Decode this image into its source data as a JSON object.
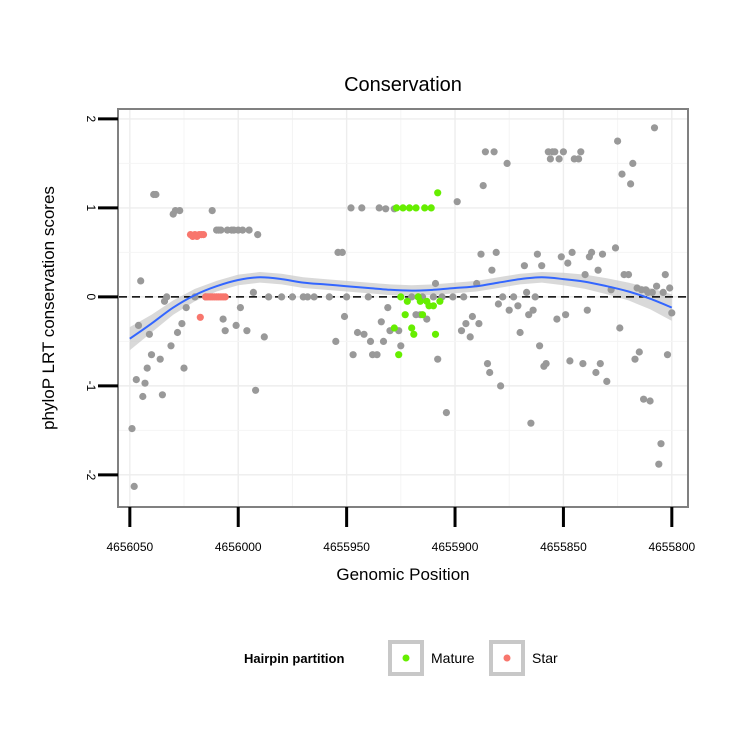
{
  "chart_data": {
    "type": "scatter",
    "title": "Conservation",
    "xlabel": "Genomic Position",
    "ylabel": "phyloP LRT conservation scores",
    "x_reversed": true,
    "xlim": [
      4656055,
      4655793
    ],
    "ylim": [
      -2.35,
      2.1
    ],
    "x_ticks": [
      4656050,
      4656000,
      4655950,
      4655900,
      4655850,
      4655800
    ],
    "x_tick_labels": [
      "4656050",
      "4656000",
      "4655950",
      "4655900",
      "4655850",
      "4655800"
    ],
    "y_ticks": [
      -2,
      -1,
      0,
      1,
      2
    ],
    "y_tick_labels": [
      "-2",
      "-1",
      "0",
      "1",
      "2"
    ],
    "grid": true,
    "reference_line": {
      "y": 0,
      "style": "dashed"
    },
    "legend": {
      "title": "Hairpin partition",
      "position": "bottom",
      "entries": [
        {
          "label": "Mature",
          "color": "#66ee00"
        },
        {
          "label": "Star",
          "color": "#f8766d"
        }
      ]
    },
    "colors": {
      "other": "#999999",
      "mature": "#66ee00",
      "star": "#f8766d",
      "smooth": "#3366ff",
      "band": "#cccccc"
    },
    "smooth": {
      "x": [
        4656050,
        4656040,
        4656030,
        4656020,
        4656010,
        4656000,
        4655990,
        4655980,
        4655970,
        4655960,
        4655950,
        4655940,
        4655930,
        4655920,
        4655910,
        4655900,
        4655890,
        4655880,
        4655870,
        4655860,
        4655850,
        4655840,
        4655830,
        4655820,
        4655810,
        4655800
      ],
      "y": [
        -0.47,
        -0.3,
        -0.12,
        0.02,
        0.12,
        0.19,
        0.22,
        0.2,
        0.16,
        0.14,
        0.12,
        0.1,
        0.08,
        0.07,
        0.08,
        0.1,
        0.12,
        0.16,
        0.2,
        0.22,
        0.2,
        0.17,
        0.12,
        0.06,
        -0.02,
        -0.12
      ],
      "band_lo": [
        -0.6,
        -0.4,
        -0.2,
        -0.05,
        0.06,
        0.13,
        0.16,
        0.14,
        0.1,
        0.08,
        0.06,
        0.04,
        0.02,
        0.01,
        0.02,
        0.04,
        0.06,
        0.1,
        0.14,
        0.16,
        0.13,
        0.09,
        0.03,
        -0.04,
        -0.14,
        -0.27
      ],
      "band_hi": [
        -0.34,
        -0.2,
        -0.04,
        0.09,
        0.18,
        0.25,
        0.28,
        0.26,
        0.22,
        0.2,
        0.18,
        0.16,
        0.14,
        0.13,
        0.14,
        0.16,
        0.18,
        0.22,
        0.26,
        0.28,
        0.27,
        0.25,
        0.21,
        0.16,
        0.1,
        0.03
      ]
    },
    "points_other": [
      [
        4656049,
        -1.48
      ],
      [
        4656048,
        -2.13
      ],
      [
        4656047,
        -0.93
      ],
      [
        4656046,
        -0.32
      ],
      [
        4656045,
        0.18
      ],
      [
        4656044,
        -1.12
      ],
      [
        4656043,
        -0.97
      ],
      [
        4656042,
        -0.8
      ],
      [
        4656041,
        -0.42
      ],
      [
        4656040,
        -0.65
      ],
      [
        4656039,
        1.15
      ],
      [
        4656038,
        1.15
      ],
      [
        4656036,
        -0.7
      ],
      [
        4656035,
        -1.1
      ],
      [
        4656034,
        -0.05
      ],
      [
        4656033,
        0.0
      ],
      [
        4656031,
        -0.55
      ],
      [
        4656030,
        0.93
      ],
      [
        4656029,
        0.97
      ],
      [
        4656028,
        -0.4
      ],
      [
        4656027,
        0.97
      ],
      [
        4656026,
        -0.3
      ],
      [
        4656025,
        -0.8
      ],
      [
        4656024,
        -0.12
      ],
      [
        4656020,
        0.0
      ],
      [
        4656015,
        0.0
      ],
      [
        4656012,
        0.97
      ],
      [
        4656010,
        0.75
      ],
      [
        4656009,
        0.75
      ],
      [
        4656008,
        0.75
      ],
      [
        4656007,
        -0.25
      ],
      [
        4656006,
        -0.38
      ],
      [
        4656005,
        0.75
      ],
      [
        4656003,
        0.75
      ],
      [
        4656002,
        0.75
      ],
      [
        4656001,
        -0.32
      ],
      [
        4656000,
        0.75
      ],
      [
        4655999,
        -0.12
      ],
      [
        4655998,
        0.75
      ],
      [
        4655996,
        -0.38
      ],
      [
        4655995,
        0.75
      ],
      [
        4655993,
        0.05
      ],
      [
        4655992,
        -1.05
      ],
      [
        4655991,
        0.7
      ],
      [
        4655988,
        -0.45
      ],
      [
        4655986,
        0.0
      ],
      [
        4655980,
        0.0
      ],
      [
        4655975,
        0.0
      ],
      [
        4655970,
        0.0
      ],
      [
        4655968,
        0.0
      ],
      [
        4655965,
        0.0
      ],
      [
        4655958,
        0.0
      ],
      [
        4655955,
        -0.5
      ],
      [
        4655954,
        0.5
      ],
      [
        4655952,
        0.5
      ],
      [
        4655951,
        -0.22
      ],
      [
        4655950,
        0.0
      ],
      [
        4655948,
        1.0
      ],
      [
        4655947,
        -0.65
      ],
      [
        4655945,
        -0.4
      ],
      [
        4655943,
        1.0
      ],
      [
        4655942,
        -0.42
      ],
      [
        4655940,
        0.0
      ],
      [
        4655939,
        -0.5
      ],
      [
        4655938,
        -0.65
      ],
      [
        4655936,
        -0.65
      ],
      [
        4655935,
        1.0
      ],
      [
        4655934,
        -0.28
      ],
      [
        4655933,
        -0.5
      ],
      [
        4655932,
        0.99
      ],
      [
        4655931,
        -0.12
      ],
      [
        4655930,
        -0.38
      ],
      [
        4655928,
        0.99
      ],
      [
        4655926,
        -0.38
      ],
      [
        4655925,
        -0.55
      ],
      [
        4655920,
        0.0
      ],
      [
        4655918,
        -0.2
      ],
      [
        4655917,
        0.0
      ],
      [
        4655916,
        -0.2
      ],
      [
        4655915,
        0.0
      ],
      [
        4655913,
        -0.25
      ],
      [
        4655910,
        0.0
      ],
      [
        4655909,
        0.15
      ],
      [
        4655908,
        -0.7
      ],
      [
        4655906,
        0.0
      ],
      [
        4655904,
        -1.3
      ],
      [
        4655901,
        0.0
      ],
      [
        4655899,
        1.07
      ],
      [
        4655897,
        -0.38
      ],
      [
        4655896,
        0.0
      ],
      [
        4655895,
        -0.3
      ],
      [
        4655893,
        -0.45
      ],
      [
        4655892,
        -0.22
      ],
      [
        4655890,
        0.15
      ],
      [
        4655889,
        -0.3
      ],
      [
        4655888,
        0.48
      ],
      [
        4655887,
        1.25
      ],
      [
        4655886,
        1.63
      ],
      [
        4655885,
        -0.75
      ],
      [
        4655884,
        -0.85
      ],
      [
        4655883,
        0.3
      ],
      [
        4655882,
        1.63
      ],
      [
        4655881,
        0.5
      ],
      [
        4655880,
        -0.08
      ],
      [
        4655879,
        -1.0
      ],
      [
        4655878,
        0.0
      ],
      [
        4655876,
        1.5
      ],
      [
        4655875,
        -0.15
      ],
      [
        4655873,
        0.0
      ],
      [
        4655871,
        -0.1
      ],
      [
        4655870,
        -0.4
      ],
      [
        4655868,
        0.35
      ],
      [
        4655867,
        0.05
      ],
      [
        4655866,
        -0.2
      ],
      [
        4655865,
        -1.42
      ],
      [
        4655864,
        -0.15
      ],
      [
        4655863,
        0.0
      ],
      [
        4655862,
        0.48
      ],
      [
        4655861,
        -0.55
      ],
      [
        4655860,
        0.35
      ],
      [
        4655859,
        -0.78
      ],
      [
        4655858,
        -0.75
      ],
      [
        4655857,
        1.63
      ],
      [
        4655856,
        1.55
      ],
      [
        4655855,
        1.63
      ],
      [
        4655854,
        1.63
      ],
      [
        4655853,
        -0.25
      ],
      [
        4655852,
        1.55
      ],
      [
        4655851,
        0.45
      ],
      [
        4655850,
        1.63
      ],
      [
        4655849,
        -0.2
      ],
      [
        4655848,
        0.38
      ],
      [
        4655847,
        -0.72
      ],
      [
        4655846,
        0.5
      ],
      [
        4655845,
        1.55
      ],
      [
        4655843,
        1.55
      ],
      [
        4655842,
        1.63
      ],
      [
        4655841,
        -0.75
      ],
      [
        4655840,
        0.25
      ],
      [
        4655839,
        -0.15
      ],
      [
        4655838,
        0.45
      ],
      [
        4655837,
        0.5
      ],
      [
        4655835,
        -0.85
      ],
      [
        4655834,
        0.3
      ],
      [
        4655833,
        -0.75
      ],
      [
        4655832,
        0.48
      ],
      [
        4655830,
        -0.95
      ],
      [
        4655828,
        0.08
      ],
      [
        4655826,
        0.55
      ],
      [
        4655825,
        1.75
      ],
      [
        4655824,
        -0.35
      ],
      [
        4655823,
        1.38
      ],
      [
        4655822,
        0.25
      ],
      [
        4655820,
        0.25
      ],
      [
        4655819,
        1.27
      ],
      [
        4655818,
        1.5
      ],
      [
        4655817,
        -0.7
      ],
      [
        4655816,
        0.1
      ],
      [
        4655815,
        -0.62
      ],
      [
        4655814,
        0.08
      ],
      [
        4655813,
        -1.15
      ],
      [
        4655812,
        0.08
      ],
      [
        4655811,
        0.05
      ],
      [
        4655810,
        -1.17
      ],
      [
        4655809,
        0.05
      ],
      [
        4655808,
        1.9
      ],
      [
        4655807,
        0.12
      ],
      [
        4655806,
        -1.88
      ],
      [
        4655805,
        -1.65
      ],
      [
        4655804,
        0.05
      ],
      [
        4655803,
        0.25
      ],
      [
        4655802,
        -0.65
      ],
      [
        4655801,
        0.1
      ],
      [
        4655800,
        -0.18
      ]
    ],
    "points_mature": [
      [
        4655928,
        -0.35
      ],
      [
        4655927,
        1.0
      ],
      [
        4655926,
        -0.65
      ],
      [
        4655925,
        0.0
      ],
      [
        4655924,
        1.0
      ],
      [
        4655923,
        -0.2
      ],
      [
        4655922,
        -0.05
      ],
      [
        4655921,
        1.0
      ],
      [
        4655920,
        -0.35
      ],
      [
        4655919,
        -0.42
      ],
      [
        4655918,
        1.0
      ],
      [
        4655917,
        0.0
      ],
      [
        4655916,
        -0.05
      ],
      [
        4655915,
        -0.2
      ],
      [
        4655914,
        1.0
      ],
      [
        4655913,
        -0.05
      ],
      [
        4655912,
        -0.1
      ],
      [
        4655911,
        1.0
      ],
      [
        4655910,
        -0.1
      ],
      [
        4655909,
        -0.42
      ],
      [
        4655908,
        1.17
      ],
      [
        4655907,
        -0.05
      ]
    ],
    "points_star": [
      [
        4656022,
        0.7
      ],
      [
        4656021,
        0.68
      ],
      [
        4656020,
        0.7
      ],
      [
        4656019,
        0.68
      ],
      [
        4656018,
        0.7
      ],
      [
        4656017,
        0.7
      ],
      [
        4656016,
        0.7
      ],
      [
        4656015,
        0.0
      ],
      [
        4656014,
        0.0
      ],
      [
        4656013,
        0.0
      ],
      [
        4656012,
        0.0
      ],
      [
        4656011,
        0.0
      ],
      [
        4656010,
        0.0
      ],
      [
        4656009,
        0.0
      ],
      [
        4656008,
        0.0
      ],
      [
        4656007,
        0.0
      ],
      [
        4656006,
        0.0
      ],
      [
        4656017.5,
        -0.23
      ]
    ]
  }
}
